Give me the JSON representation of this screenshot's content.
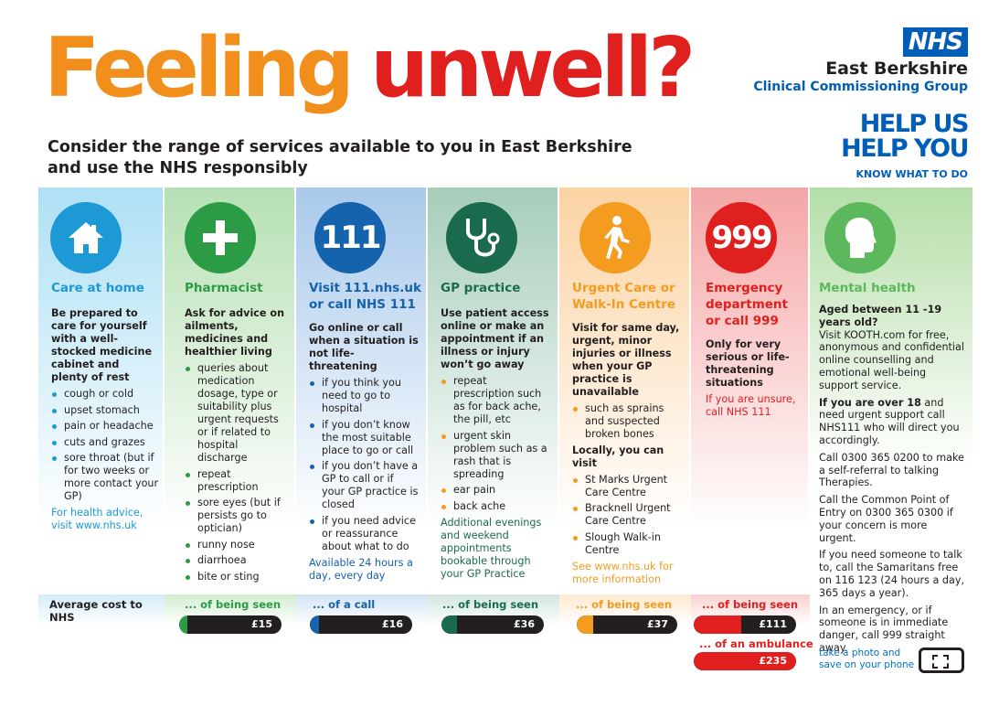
{
  "header": {
    "word1": "Feeling",
    "word2": "unwell?",
    "subhead_line1": "Consider the range of services available to you in East Berkshire",
    "subhead_line2": "and use the NHS responsibly"
  },
  "brand": {
    "nhs": "NHS",
    "org": "East Berkshire",
    "ccg": "Clinical Commissioning Group",
    "help_line1": "HELP US",
    "help_line2": "HELP YOU",
    "know": "KNOW WHAT TO DO"
  },
  "colors": {
    "orange": "#f28f1c",
    "red": "#e0201f",
    "nhs_blue": "#005eb8",
    "home": "#1d9ad6",
    "pharmacist": "#2b9b46",
    "nhs111": "#1562ad",
    "gp": "#1a6b4e",
    "urgent": "#f39c1f",
    "emergency": "#e0201f",
    "mental": "#5cb85c"
  },
  "columns": [
    {
      "icon": "house-icon",
      "title": "Care at home",
      "lead": "Be prepared to care for yourself with a well-stocked medicine cabinet and plenty of rest",
      "bullets": [
        "cough or cold",
        "upset stomach",
        "pain or headache",
        "cuts and grazes",
        "sore throat (but if for two weeks or more contact your GP)"
      ],
      "note": "For health advice, visit www.nhs.uk"
    },
    {
      "icon": "cross-icon",
      "title": "Pharmacist",
      "lead": "Ask for advice on ailments, medicines and healthier living",
      "bullets": [
        "queries about medication dosage, type or suitability plus urgent requests or if related to hospital discharge",
        "repeat prescription",
        "sore eyes (but if persists go to optician)",
        "runny nose",
        "diarrhoea",
        "bite or sting"
      ]
    },
    {
      "icon_text": "111",
      "title_line1": "Visit 111.nhs.uk",
      "title_line2": "or call NHS 111",
      "lead": "Go online or call when a situation is not life-threatening",
      "bullets": [
        "if you think you need to go to hospital",
        "if you don’t know the most suitable place to go or call",
        "if you don’t have a GP to call or if your GP practice is closed",
        "if you need  advice or reassurance about what to do"
      ],
      "note": "Available 24 hours a day, every day"
    },
    {
      "icon": "stethoscope-icon",
      "title": "GP practice",
      "lead": "Use patient access online or make an appointment if an illness or injury won’t go away",
      "bullets": [
        "repeat prescription such as for back ache, the pill, etc",
        "urgent skin problem such as a rash that is spreading",
        "ear pain",
        "back ache"
      ],
      "note": "Additional evenings and weekend appointments bookable through your GP Practice"
    },
    {
      "icon": "walking-person-icon",
      "title_line1": "Urgent Care or",
      "title_line2": "Walk-In Centre",
      "lead": "Visit for same day, urgent, minor injuries or illness when your GP practice is unavailable",
      "bullets": [
        "such as sprains and suspected broken bones"
      ],
      "lead2": "Locally, you can visit",
      "bullets2": [
        "St Marks Urgent Care Centre",
        "Bracknell Urgent Care Centre",
        "Slough Walk-in Centre"
      ],
      "note": "See www.nhs.uk for more information"
    },
    {
      "icon_text": "999",
      "title_line1": "Emergency",
      "title_line2": "department",
      "title_line3": "or call 999",
      "lead": "Only for very serious or life-threatening situations",
      "note": "If you are unsure, call NHS 111"
    },
    {
      "icon": "head-icon",
      "title": "Mental health",
      "lead": "Aged between 11 -19 years old?",
      "p1": "Visit KOOTH.com for free, anonymous and confidential online counselling and emotional well-being support service.",
      "p2_bold": "If you are over 18",
      "p2": "and need urgent support call NHS111 who will direct you accordingly.",
      "p3": "Call 0300 365 0200 to make a self-referral to talking Therapies.",
      "p4": "Call the Common Point of Entry on 0300 365 0300 if your concern is more urgent.",
      "p5": "If you need someone to talk to, call the Samaritans free on 116 123 (24 hours a day, 365 days a year).",
      "p6": "In an emergency, or if someone is in immediate danger, call 999 straight away."
    }
  ],
  "costs": {
    "label": "Average cost to NHS",
    "pharmacist": {
      "caption": "... of being seen",
      "value": "£15"
    },
    "nhs111": {
      "caption": "... of a call",
      "value": "£16"
    },
    "gp": {
      "caption": "... of being seen",
      "value": "£36"
    },
    "urgent": {
      "caption": "... of being seen",
      "value": "£37"
    },
    "emergency": {
      "caption": "... of being seen",
      "value": "£111"
    },
    "ambulance": {
      "caption": "... of an ambulance",
      "value": "£235"
    }
  },
  "footer": {
    "photo_line1": "take a photo and",
    "photo_line2": "save on your phone"
  }
}
